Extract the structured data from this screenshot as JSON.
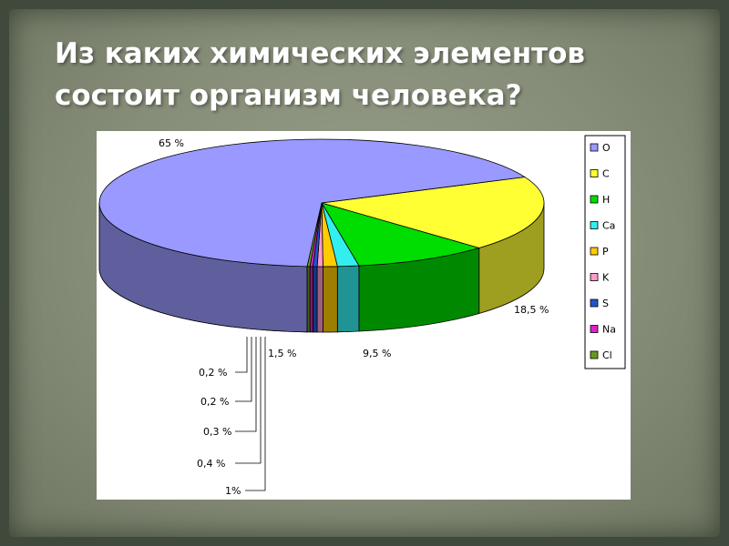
{
  "slide": {
    "title_line1": "Из каких химических элементов",
    "title_line2": "состоит организм человека?"
  },
  "chart_data": {
    "type": "pie",
    "title": "",
    "three_d": true,
    "legend_position": "right",
    "slices": [
      {
        "name": "O",
        "value": 65,
        "label": "65 %",
        "color": "#9999ff"
      },
      {
        "name": "C",
        "value": 18.5,
        "label": "18,5 %",
        "color": "#ffff33"
      },
      {
        "name": "H",
        "value": 9.5,
        "label": "9,5 %",
        "color": "#00dd00"
      },
      {
        "name": "Ca",
        "value": 1.5,
        "label": "1,5 %",
        "color": "#33eeee"
      },
      {
        "name": "P",
        "value": 1,
        "label": "1%",
        "color": "#ffcc00"
      },
      {
        "name": "K",
        "value": 0.4,
        "label": "0,4 %",
        "color": "#ff99cc"
      },
      {
        "name": "S",
        "value": 0.3,
        "label": "0,3 %",
        "color": "#2255cc"
      },
      {
        "name": "Na",
        "value": 0.2,
        "label": "0,2 %",
        "color": "#dd22cc"
      },
      {
        "name": "Cl",
        "value": 0.2,
        "label": "0,2 %",
        "color": "#669922"
      }
    ]
  }
}
